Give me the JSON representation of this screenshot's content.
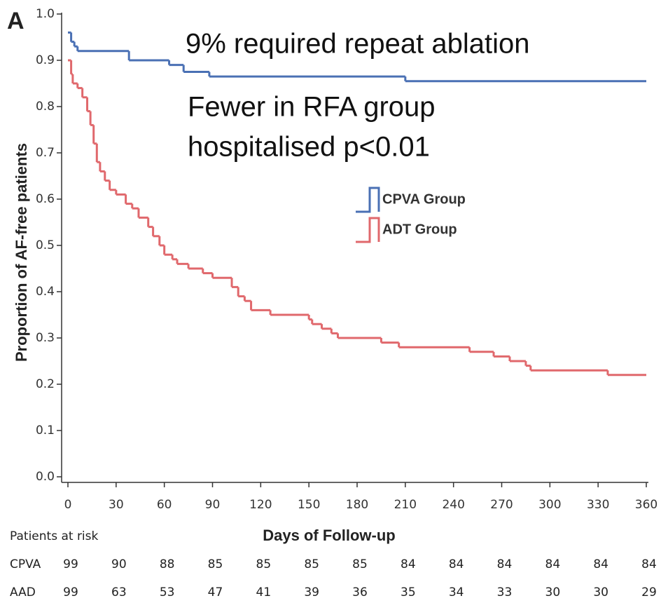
{
  "chart_data": {
    "type": "line",
    "panel_label": "A",
    "annotations": [
      "9% required repeat ablation",
      "Fewer in RFA group",
      "hospitalised p<0.01"
    ],
    "x_label": "Days of Follow-up",
    "y_label": "Proportion of AF-free patients",
    "xlim": [
      0,
      360
    ],
    "xticks": [
      0,
      30,
      60,
      90,
      120,
      150,
      180,
      210,
      240,
      270,
      300,
      330,
      360
    ],
    "ylim": [
      0,
      1
    ],
    "yticks": [
      {
        "value": 0,
        "label": "0.0"
      },
      {
        "value": 0.1,
        "label": "0.1"
      },
      {
        "value": 0.2,
        "label": "0.2"
      },
      {
        "value": 0.3,
        "label": "0.3"
      },
      {
        "value": 0.4,
        "label": "0.4"
      },
      {
        "value": 0.5,
        "label": "0.5"
      },
      {
        "value": 0.6,
        "label": "0.6"
      },
      {
        "value": 0.7,
        "label": "0.7"
      },
      {
        "value": 0.8,
        "label": "0.8"
      },
      {
        "value": 0.9,
        "label": "0.9"
      },
      {
        "value": 1,
        "label": "1.0"
      }
    ],
    "step": true,
    "series": [
      {
        "name": "CPVA Group",
        "color": "#4a70b4",
        "x": [
          0,
          2,
          4,
          6,
          38,
          63,
          72,
          88,
          210,
          360
        ],
        "values": [
          0.96,
          0.94,
          0.93,
          0.92,
          0.9,
          0.89,
          0.875,
          0.865,
          0.855,
          0.855
        ]
      },
      {
        "name": "ADT Group",
        "color": "#e0686c",
        "x": [
          0,
          2,
          3,
          6,
          9,
          12,
          14,
          16,
          18,
          20,
          23,
          26,
          30,
          36,
          40,
          44,
          50,
          53,
          57,
          60,
          65,
          68,
          75,
          84,
          90,
          102,
          106,
          110,
          114,
          126,
          150,
          152,
          158,
          164,
          168,
          195,
          206,
          250,
          265,
          275,
          285,
          288,
          336,
          360
        ],
        "values": [
          0.9,
          0.87,
          0.85,
          0.84,
          0.82,
          0.79,
          0.76,
          0.72,
          0.68,
          0.66,
          0.64,
          0.62,
          0.61,
          0.59,
          0.58,
          0.56,
          0.54,
          0.52,
          0.5,
          0.48,
          0.47,
          0.46,
          0.45,
          0.44,
          0.43,
          0.41,
          0.39,
          0.38,
          0.36,
          0.35,
          0.34,
          0.33,
          0.32,
          0.31,
          0.3,
          0.29,
          0.28,
          0.27,
          0.26,
          0.25,
          0.24,
          0.23,
          0.22,
          0.22
        ]
      }
    ],
    "risk_table": {
      "title": "Patients at risk",
      "rows": [
        {
          "label": "CPVA",
          "values": [
            99,
            90,
            88,
            85,
            85,
            85,
            85,
            84,
            84,
            84,
            84,
            84,
            84
          ]
        },
        {
          "label": "AAD",
          "values": [
            99,
            63,
            53,
            47,
            41,
            39,
            36,
            35,
            34,
            33,
            30,
            30,
            29
          ]
        }
      ]
    }
  }
}
